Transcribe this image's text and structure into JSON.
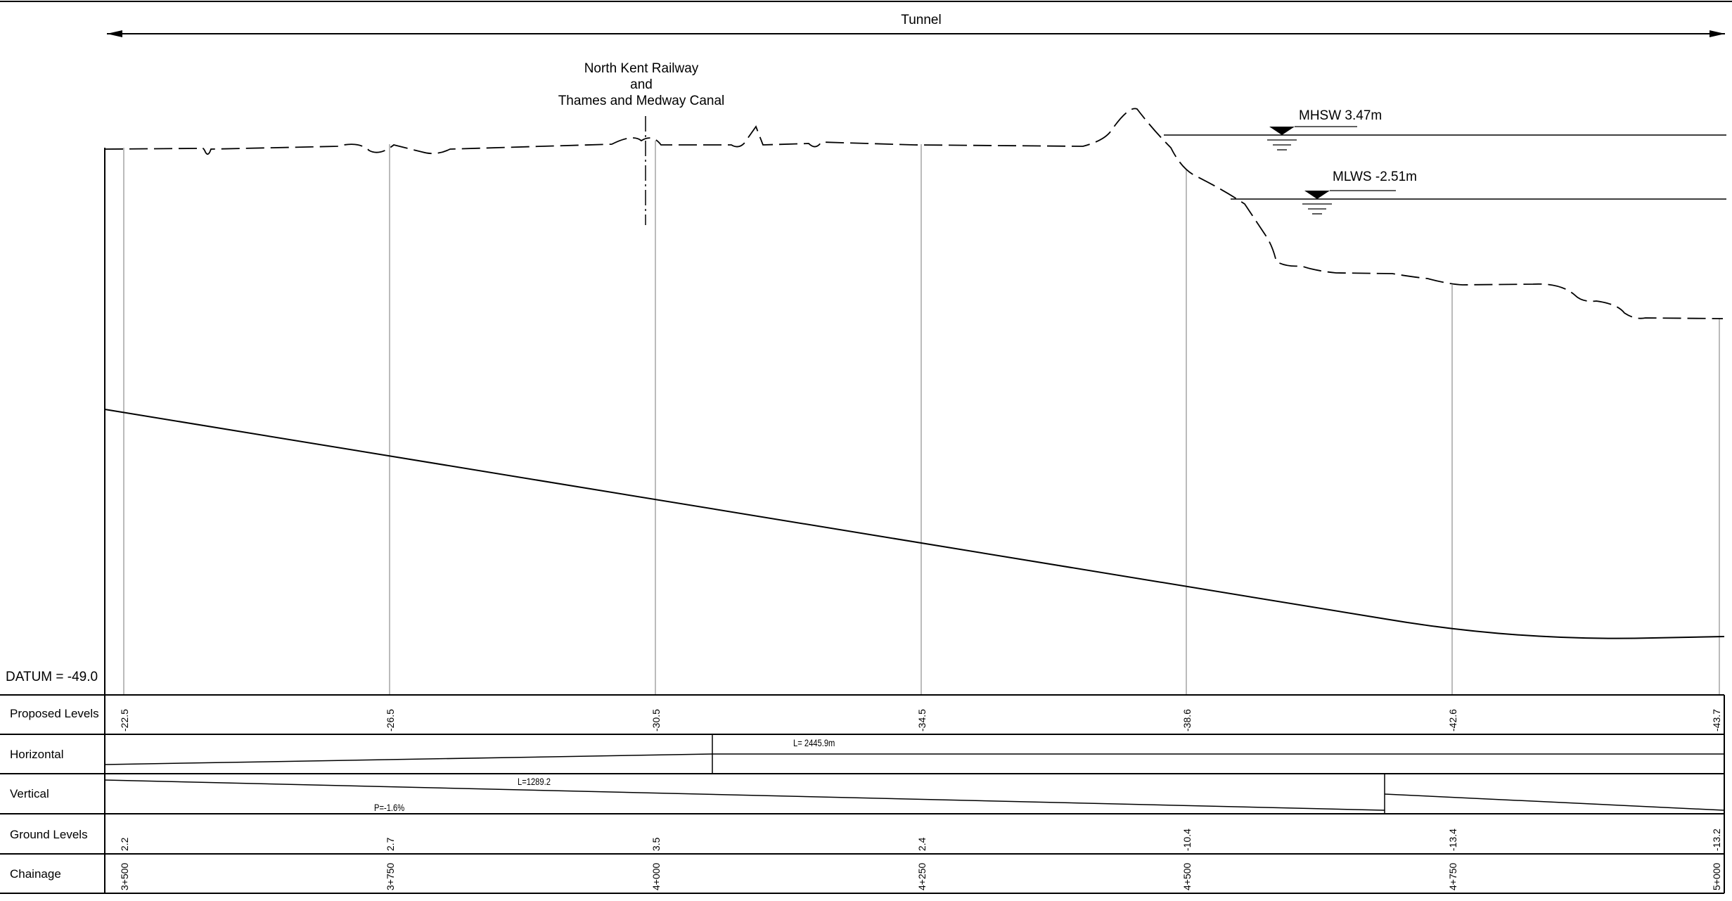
{
  "tunnel_label": "Tunnel",
  "crossing_label": [
    "North Kent Railway",
    "and",
    "Thames and Medway Canal"
  ],
  "water_levels": {
    "mhsw": "MHSW 3.47m",
    "mlws": "MLWS -2.51m"
  },
  "datum": "DATUM = -49.0",
  "rows": {
    "proposed": "Proposed Levels",
    "horizontal": "Horizontal",
    "vertical": "Vertical",
    "ground": "Ground Levels",
    "chainage": "Chainage"
  },
  "horizontal_label": "L= 2445.9m",
  "vertical_label": "L=1289.2",
  "gradient_label": "P=-1.6%",
  "stations": [
    {
      "chainage": "3+500",
      "proposed": "-22.5",
      "ground": "2.2"
    },
    {
      "chainage": "3+750",
      "proposed": "-26.5",
      "ground": "2.7"
    },
    {
      "chainage": "4+000",
      "proposed": "-30.5",
      "ground": "3.5"
    },
    {
      "chainage": "4+250",
      "proposed": "-34.5",
      "ground": "2.4"
    },
    {
      "chainage": "4+500",
      "proposed": "-38.6",
      "ground": "-10.4"
    },
    {
      "chainage": "4+750",
      "proposed": "-42.6",
      "ground": "-13.4"
    },
    {
      "chainage": "5+000",
      "proposed": "-43.7",
      "ground": "-13.2"
    }
  ]
}
